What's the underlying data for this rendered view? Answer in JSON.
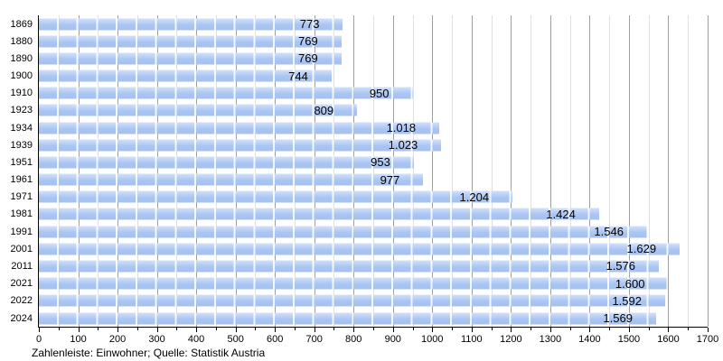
{
  "chart_data": {
    "type": "bar",
    "orientation": "horizontal",
    "title": "",
    "xlabel": "",
    "ylabel": "",
    "caption": "Zahlenleiste: Einwohner; Quelle: Statistik Austria",
    "xlim": [
      0,
      1700
    ],
    "x_major_tick_step": 100,
    "x_minor_tick_step": 50,
    "grid": "vertical, major every 100 (dark) and minor every 50 (light)",
    "legend_position": "none",
    "categories": [
      "1869",
      "1880",
      "1890",
      "1900",
      "1910",
      "1923",
      "1934",
      "1939",
      "1951",
      "1961",
      "1971",
      "1981",
      "1991",
      "2001",
      "2011",
      "2021",
      "2022",
      "2024"
    ],
    "values": [
      773,
      769,
      769,
      744,
      950,
      809,
      1018,
      1023,
      953,
      977,
      1204,
      1424,
      1546,
      1629,
      1576,
      1600,
      1592,
      1569
    ],
    "rows": [
      {
        "year": "1869",
        "value": 773,
        "label": "773"
      },
      {
        "year": "1880",
        "value": 769,
        "label": "769"
      },
      {
        "year": "1890",
        "value": 769,
        "label": "769"
      },
      {
        "year": "1900",
        "value": 744,
        "label": "744"
      },
      {
        "year": "1910",
        "value": 950,
        "label": "950"
      },
      {
        "year": "1923",
        "value": 809,
        "label": "809"
      },
      {
        "year": "1934",
        "value": 1018,
        "label": "1.018"
      },
      {
        "year": "1939",
        "value": 1023,
        "label": "1.023"
      },
      {
        "year": "1951",
        "value": 953,
        "label": "953"
      },
      {
        "year": "1961",
        "value": 977,
        "label": "977"
      },
      {
        "year": "1971",
        "value": 1204,
        "label": "1.204"
      },
      {
        "year": "1981",
        "value": 1424,
        "label": "1.424"
      },
      {
        "year": "1991",
        "value": 1546,
        "label": "1.546"
      },
      {
        "year": "2001",
        "value": 1629,
        "label": "1.629"
      },
      {
        "year": "2011",
        "value": 1576,
        "label": "1.576"
      },
      {
        "year": "2021",
        "value": 1600,
        "label": "1.600"
      },
      {
        "year": "2022",
        "value": 1592,
        "label": "1.592"
      },
      {
        "year": "2024",
        "value": 1569,
        "label": "1.569"
      }
    ],
    "x_tick_labels": [
      "0",
      "100",
      "200",
      "300",
      "400",
      "500",
      "600",
      "700",
      "800",
      "900",
      "1000",
      "1100",
      "1200",
      "1300",
      "1400",
      "1500",
      "1600",
      "1700"
    ],
    "colors": {
      "bar_main": "#abc5f2",
      "bar_highlight": "#d3e1fa",
      "bar_tile_separator": "#ffffff",
      "grid_major": "#9f9f9f",
      "grid_minor": "#e0e0e0",
      "axis": "#000000",
      "text": "#000000",
      "background": "#ffffff"
    }
  }
}
